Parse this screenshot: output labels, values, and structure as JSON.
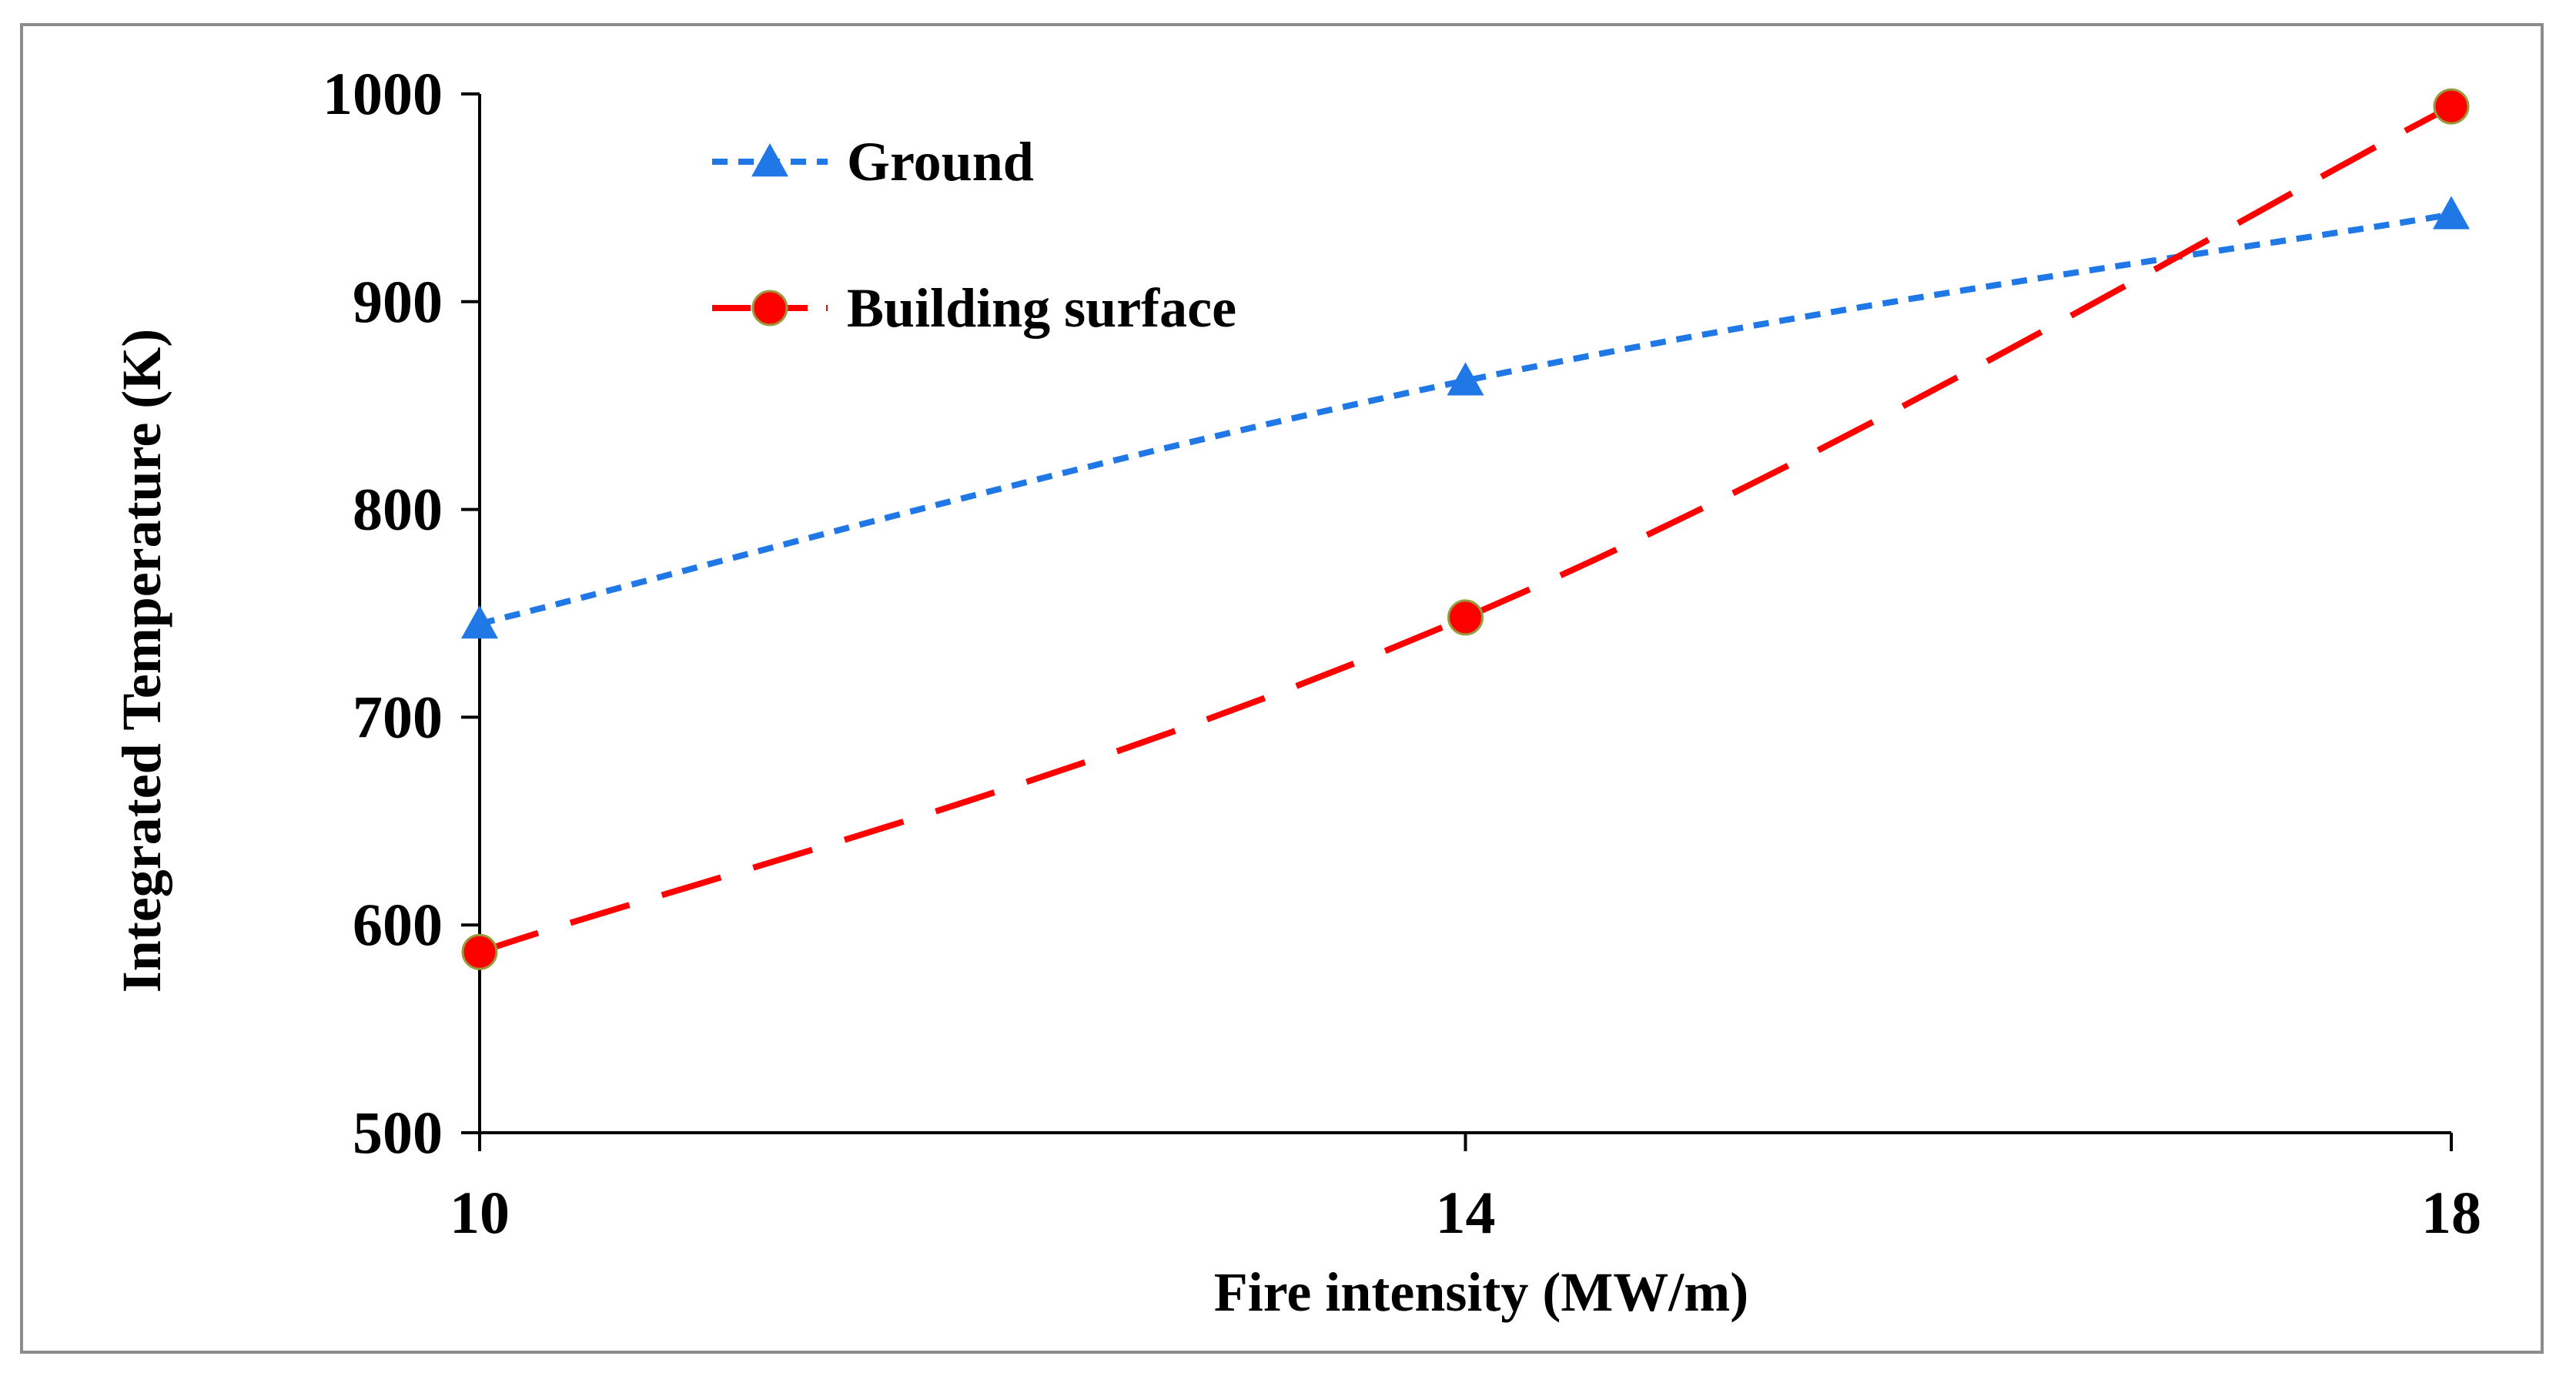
{
  "chart_data": {
    "type": "line",
    "title": "",
    "xlabel": "Fire intensity (MW/m)",
    "ylabel": "Integrated Temperature (K)",
    "x": [
      10,
      14,
      18
    ],
    "x_tick_labels": [
      "10",
      "14",
      "18"
    ],
    "xlim": [
      10,
      18
    ],
    "ylim": [
      500,
      1000
    ],
    "y_ticks": [
      500,
      600,
      700,
      800,
      900,
      1000
    ],
    "y_tick_labels": [
      "500",
      "600",
      "700",
      "800",
      "900",
      "1000"
    ],
    "grid": false,
    "legend_position": "top-left",
    "series": [
      {
        "name": "Ground",
        "values": [
          745,
          862,
          942
        ],
        "color": "#1f78e6",
        "marker": "triangle",
        "line_style": "short-dash"
      },
      {
        "name": "Building surface",
        "values": [
          587,
          748,
          994
        ],
        "color": "#ff0000",
        "marker": "circle",
        "line_style": "long-dash"
      }
    ]
  }
}
